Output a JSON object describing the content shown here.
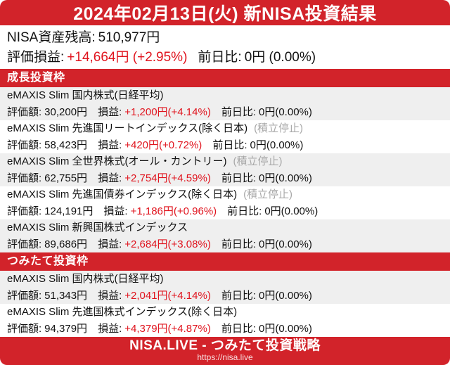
{
  "header": {
    "title": "2024年02月13日(火) 新NISA投資結果"
  },
  "summary": {
    "balance_label": "NISA資産残高:",
    "balance_value": "510,977円",
    "pl_label": "評価損益:",
    "pl_value": "+14,664円 (+2.95%)",
    "dod_label": "前日比:",
    "dod_value": "0円 (0.00%)"
  },
  "labels": {
    "value": "評価額:",
    "pl": "損益:",
    "dod": "前日比:"
  },
  "sections": [
    {
      "title": "成長投資枠",
      "funds": [
        {
          "name": "eMAXIS Slim 国内株式(日経平均)",
          "suspended": "",
          "value": "30,200円",
          "pl": "+1,200円(+4.14%)",
          "dod": "0円(0.00%)"
        },
        {
          "name": "eMAXIS Slim 先進国リートインデックス(除く日本)",
          "suspended": "(積立停止)",
          "value": "58,423円",
          "pl": "+420円(+0.72%)",
          "dod": "0円(0.00%)"
        },
        {
          "name": "eMAXIS Slim 全世界株式(オール・カントリー)",
          "suspended": "(積立停止)",
          "value": "62,755円",
          "pl": "+2,754円(+4.59%)",
          "dod": "0円(0.00%)"
        },
        {
          "name": "eMAXIS Slim 先進国債券インデックス(除く日本)",
          "suspended": "(積立停止)",
          "value": "124,191円",
          "pl": "+1,186円(+0.96%)",
          "dod": "0円(0.00%)"
        },
        {
          "name": "eMAXIS Slim 新興国株式インデックス",
          "suspended": "",
          "value": "89,686円",
          "pl": "+2,684円(+3.08%)",
          "dod": "0円(0.00%)"
        }
      ]
    },
    {
      "title": "つみたて投資枠",
      "funds": [
        {
          "name": "eMAXIS Slim 国内株式(日経平均)",
          "suspended": "",
          "value": "51,343円",
          "pl": "+2,041円(+4.14%)",
          "dod": "0円(0.00%)"
        },
        {
          "name": "eMAXIS Slim 先進国株式インデックス(除く日本)",
          "suspended": "",
          "value": "94,379円",
          "pl": "+4,379円(+4.87%)",
          "dod": "0円(0.00%)"
        }
      ]
    }
  ],
  "footer": {
    "title": "NISA.LIVE - つみたて投資戦略",
    "url": "https://nisa.live"
  },
  "colors": {
    "brand_red": "#d2232a",
    "gain_red": "#e0141e",
    "row_alt": "#efefef",
    "muted_gray": "#a8a8a8"
  }
}
